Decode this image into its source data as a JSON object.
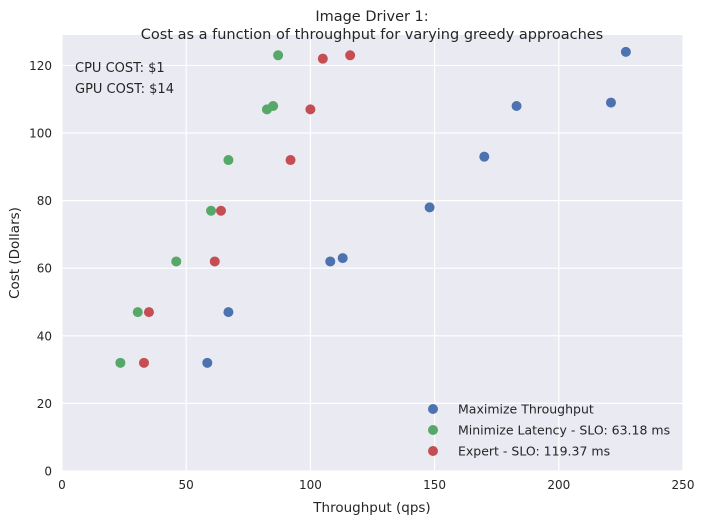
{
  "chart_data": {
    "type": "scatter",
    "title": "Image Driver 1:",
    "subtitle": "Cost as a function of throughput for varying greedy approaches",
    "xlabel": "Throughput (qps)",
    "ylabel": "Cost (Dollars)",
    "xlim": [
      0,
      250
    ],
    "ylim": [
      0,
      129
    ],
    "xticks": [
      0,
      50,
      100,
      150,
      200,
      250
    ],
    "yticks": [
      0,
      20,
      40,
      60,
      80,
      100,
      120
    ],
    "grid": true,
    "background": "#EAEAF2",
    "legend_position": "lower-right",
    "annotations": [
      "CPU COST: $1",
      "GPU COST: $14"
    ],
    "series": [
      {
        "name": "Maximize Throughput",
        "color": "#4C72B0",
        "points": [
          [
            58.5,
            32
          ],
          [
            67,
            47
          ],
          [
            108,
            62
          ],
          [
            113,
            63
          ],
          [
            148,
            78
          ],
          [
            170,
            93
          ],
          [
            183,
            108
          ],
          [
            221,
            109
          ],
          [
            227,
            124
          ]
        ]
      },
      {
        "name": "Minimize Latency - SLO: 63.18 ms",
        "color": "#55A868",
        "points": [
          [
            23.5,
            32
          ],
          [
            30.5,
            47
          ],
          [
            46,
            62
          ],
          [
            60,
            77
          ],
          [
            67,
            92
          ],
          [
            82.5,
            107
          ],
          [
            85,
            108
          ],
          [
            87,
            123
          ]
        ]
      },
      {
        "name": "Expert - SLO: 119.37 ms",
        "color": "#C44E52",
        "points": [
          [
            33,
            32
          ],
          [
            35,
            47
          ],
          [
            61.5,
            62
          ],
          [
            64,
            77
          ],
          [
            92,
            92
          ],
          [
            100,
            107
          ],
          [
            105,
            122
          ],
          [
            116,
            123
          ]
        ]
      }
    ]
  }
}
